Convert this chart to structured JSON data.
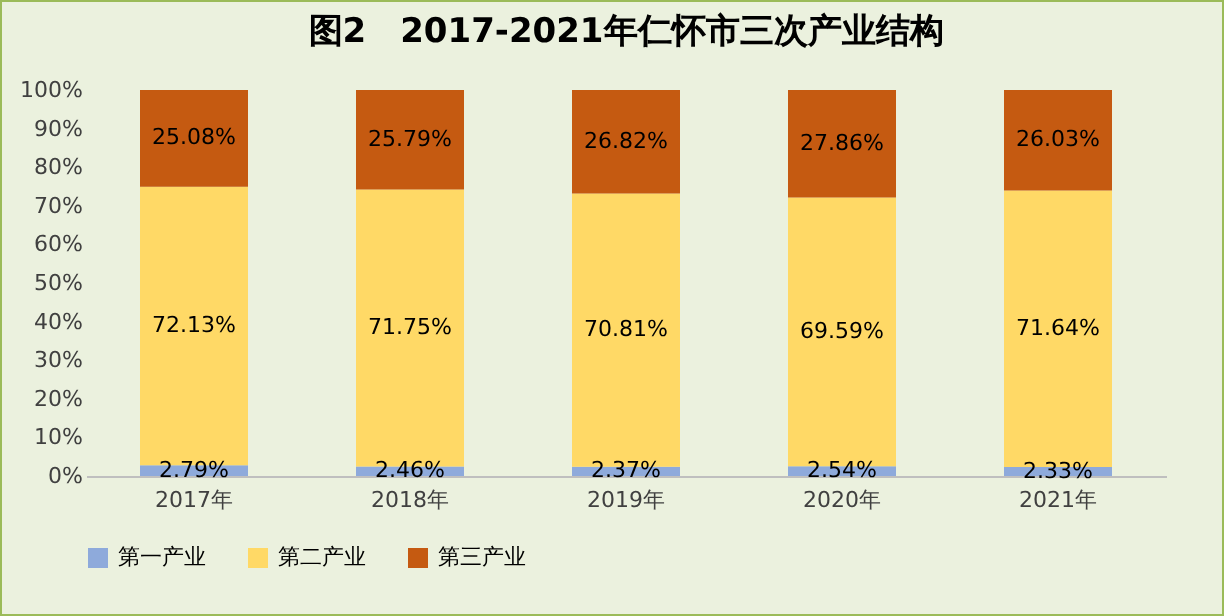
{
  "chart_data": {
    "type": "bar",
    "title": "图2　2017-2021年仁怀市三次产业结构",
    "stacked": true,
    "categories": [
      "2017年",
      "2018年",
      "2019年",
      "2020年",
      "2021年"
    ],
    "series": [
      {
        "name": "第一产业",
        "color": "#8eaadb",
        "values": [
          2.79,
          2.46,
          2.37,
          2.54,
          2.33
        ],
        "value_labels": [
          "2.79%",
          "2.46%",
          "2.37%",
          "2.54%",
          "2.33%"
        ]
      },
      {
        "name": "第二产业",
        "color": "#ffd966",
        "values": [
          72.13,
          71.75,
          70.81,
          69.59,
          71.64
        ],
        "value_labels": [
          "72.13%",
          "71.75%",
          "70.81%",
          "69.59%",
          "71.64%"
        ]
      },
      {
        "name": "第三产业",
        "color": "#c55a11",
        "values": [
          25.08,
          25.79,
          26.82,
          27.86,
          26.03
        ],
        "value_labels": [
          "25.08%",
          "25.79%",
          "26.82%",
          "27.86%",
          "26.03%"
        ]
      }
    ],
    "ylim": [
      0,
      100
    ],
    "yticks": [
      {
        "value": 0,
        "label": "0%"
      },
      {
        "value": 10,
        "label": "10%"
      },
      {
        "value": 20,
        "label": "20%"
      },
      {
        "value": 30,
        "label": "30%"
      },
      {
        "value": 40,
        "label": "40%"
      },
      {
        "value": 50,
        "label": "50%"
      },
      {
        "value": 60,
        "label": "60%"
      },
      {
        "value": 70,
        "label": "70%"
      },
      {
        "value": 80,
        "label": "80%"
      },
      {
        "value": 90,
        "label": "90%"
      },
      {
        "value": 100,
        "label": "100%"
      }
    ],
    "grid": false,
    "legend": "bottom"
  }
}
